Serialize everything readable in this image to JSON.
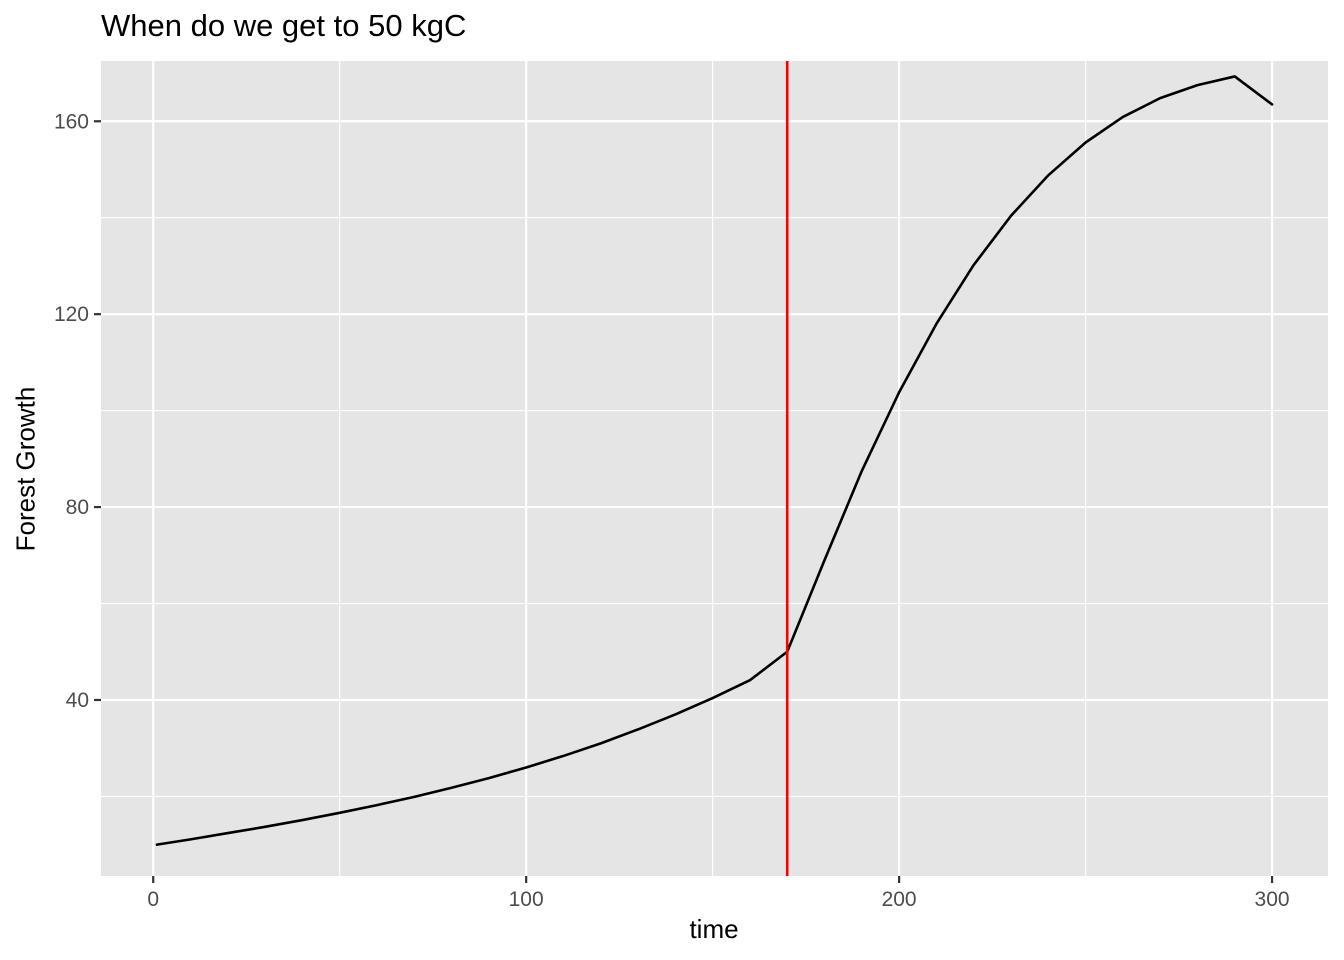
{
  "chart_data": {
    "type": "line",
    "title": "When do we get to 50 kgC",
    "xlabel": "time",
    "ylabel": "Forest Growth",
    "xlim": [
      -14,
      315
    ],
    "ylim": [
      3.5,
      172.5
    ],
    "xticks": [
      0,
      100,
      200,
      300
    ],
    "xtick_labels": [
      "0",
      "100",
      "200",
      "300"
    ],
    "yticks": [
      40,
      80,
      120,
      160
    ],
    "ytick_labels": [
      "40",
      "80",
      "120",
      "160"
    ],
    "grid": true,
    "legend": "none",
    "series": [
      {
        "x": [
          1,
          10,
          20,
          30,
          40,
          50,
          60,
          70,
          80,
          90,
          100,
          110,
          120,
          130,
          140,
          150,
          160,
          170,
          180,
          190,
          200,
          210,
          220,
          230,
          240,
          250,
          260,
          270,
          280,
          290,
          300
        ],
        "values": [
          10,
          11.1,
          12.4,
          13.7,
          15.1,
          16.6,
          18.2,
          19.9,
          21.8,
          23.8,
          26.0,
          28.4,
          31.0,
          33.9,
          37.0,
          40.4,
          44.1,
          50.0,
          69.0,
          87.5,
          103.8,
          118.0,
          130.2,
          140.4,
          148.8,
          155.6,
          160.9,
          164.8,
          167.5,
          169.3,
          163.5
        ]
      }
    ],
    "vline": {
      "x": 170
    },
    "colors": {
      "panel_background": "#e5e5e5",
      "grid_line": "#ffffff",
      "series_line": "#000000",
      "vline": "#ff0000",
      "tick_label": "#4d4d4d",
      "tick_mark": "#333333"
    }
  }
}
